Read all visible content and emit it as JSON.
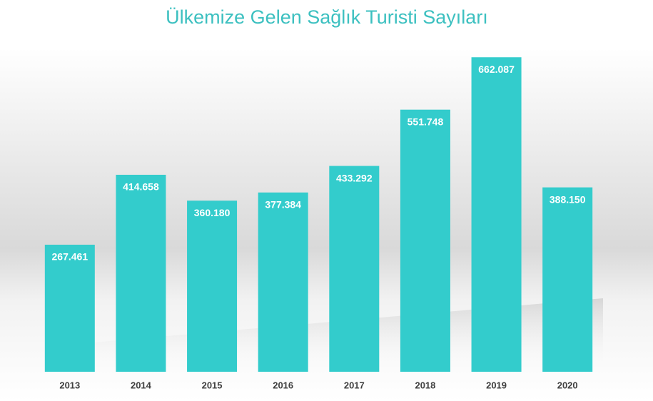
{
  "chart_data": {
    "type": "bar",
    "title": "Ülkemize Gelen Sağlık Turisti Sayıları",
    "categories": [
      "2013",
      "2014",
      "2015",
      "2016",
      "2017",
      "2018",
      "2019",
      "2020"
    ],
    "values": [
      267461,
      414658,
      360180,
      377384,
      433292,
      551748,
      662087,
      388150
    ],
    "value_labels": [
      "267.461",
      "414.658",
      "360.180",
      "377.384",
      "433.292",
      "551.748",
      "662.087",
      "388.150"
    ],
    "color": "#33cccc",
    "ylim": [
      0,
      700000
    ]
  }
}
